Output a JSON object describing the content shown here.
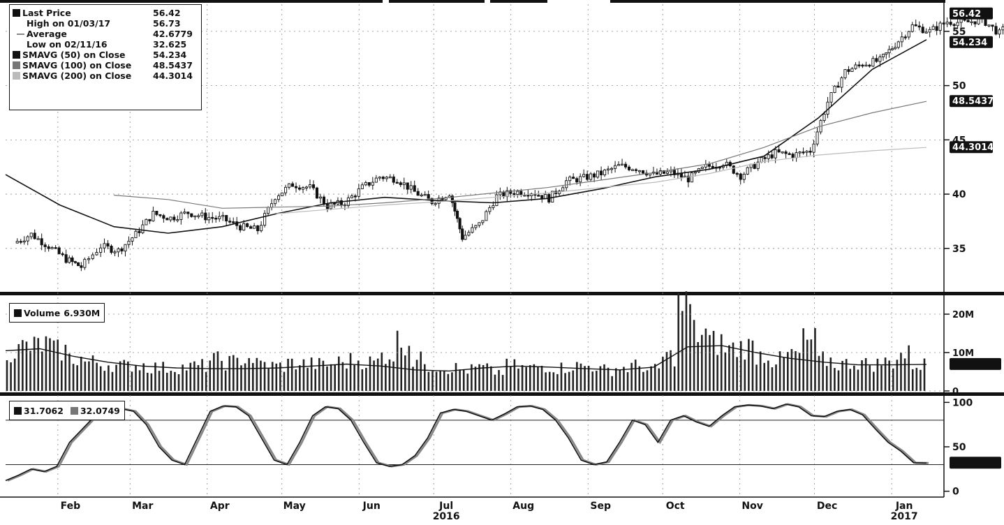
{
  "chart_data": [
    {
      "type": "candlestick",
      "panel": "price",
      "ylim": [
        31,
        57.5
      ],
      "y_ticks": [
        35,
        40,
        45,
        50,
        55
      ],
      "legend": {
        "placement": "top-left",
        "entries": [
          {
            "label": "Last Price",
            "value": "56.42",
            "swatch": "#111111"
          },
          {
            "label": "High on 01/03/17",
            "value": "56.73",
            "swatch": "none"
          },
          {
            "label": "Average",
            "value": "42.6779",
            "swatch": "dash"
          },
          {
            "label": "Low on 02/11/16",
            "value": "32.625",
            "swatch": "none"
          },
          {
            "label": "SMAVG (50) on Close",
            "value": "54.234",
            "swatch": "#111111"
          },
          {
            "label": "SMAVG (100) on Close",
            "value": "48.5437",
            "swatch": "#777777"
          },
          {
            "label": "SMAVG (200) on Close",
            "value": "44.3014",
            "swatch": "#bbbbbb"
          }
        ]
      },
      "value_tags": [
        {
          "text": "56.42",
          "value": 56.42
        },
        {
          "text": "54.234",
          "value": 54.234
        },
        {
          "text": "48.5437",
          "value": 48.5437
        },
        {
          "text": "44.3014",
          "value": 44.3014
        }
      ],
      "close_path": [
        [
          "2016-01-15",
          35.5
        ],
        [
          "2016-01-22",
          36.3
        ],
        [
          "2016-01-29",
          35.2
        ],
        [
          "2016-02-05",
          34.0
        ],
        [
          "2016-02-11",
          33.3
        ],
        [
          "2016-02-19",
          35.2
        ],
        [
          "2016-02-26",
          34.8
        ],
        [
          "2016-03-04",
          36.3
        ],
        [
          "2016-03-11",
          38.2
        ],
        [
          "2016-03-18",
          37.8
        ],
        [
          "2016-03-25",
          38.3
        ],
        [
          "2016-04-01",
          37.9
        ],
        [
          "2016-04-08",
          37.7
        ],
        [
          "2016-04-15",
          37.0
        ],
        [
          "2016-04-22",
          36.7
        ],
        [
          "2016-04-29",
          39.8
        ],
        [
          "2016-05-06",
          40.9
        ],
        [
          "2016-05-13",
          40.6
        ],
        [
          "2016-05-20",
          38.9
        ],
        [
          "2016-05-27",
          39.2
        ],
        [
          "2016-06-03",
          40.6
        ],
        [
          "2016-06-10",
          41.6
        ],
        [
          "2016-06-17",
          41.4
        ],
        [
          "2016-06-24",
          40.2
        ],
        [
          "2016-07-01",
          39.3
        ],
        [
          "2016-07-08",
          40.1
        ],
        [
          "2016-07-13",
          36.0
        ],
        [
          "2016-07-20",
          37.2
        ],
        [
          "2016-07-27",
          39.8
        ],
        [
          "2016-08-03",
          40.2
        ],
        [
          "2016-08-10",
          40.2
        ],
        [
          "2016-08-17",
          39.6
        ],
        [
          "2016-08-24",
          41.2
        ],
        [
          "2016-08-31",
          41.5
        ],
        [
          "2016-09-07",
          41.9
        ],
        [
          "2016-09-14",
          42.6
        ],
        [
          "2016-09-21",
          42.4
        ],
        [
          "2016-09-28",
          41.8
        ],
        [
          "2016-10-05",
          42.0
        ],
        [
          "2016-10-12",
          41.4
        ],
        [
          "2016-10-19",
          42.5
        ],
        [
          "2016-10-26",
          42.9
        ],
        [
          "2016-11-02",
          41.7
        ],
        [
          "2016-11-09",
          42.9
        ],
        [
          "2016-11-16",
          43.8
        ],
        [
          "2016-11-23",
          43.6
        ],
        [
          "2016-11-30",
          44.0
        ],
        [
          "2016-12-07",
          48.5
        ],
        [
          "2016-12-14",
          51.3
        ],
        [
          "2016-12-21",
          52.0
        ],
        [
          "2016-12-28",
          52.3
        ],
        [
          "2017-01-03",
          53.8
        ],
        [
          "2017-01-10",
          55.5
        ],
        [
          "2017-01-17",
          55.0
        ],
        [
          "2017-01-24",
          55.9
        ],
        [
          "2017-01-31",
          55.8
        ],
        [
          "2017-02-07",
          56.1
        ],
        [
          "2017-02-14",
          54.8
        ],
        [
          "2017-02-21",
          56.42
        ]
      ],
      "series": [
        {
          "name": "SMAVG (50) on Close",
          "values": [
            41.8,
            39.0,
            37.0,
            36.4,
            37.0,
            38.2,
            39.2,
            39.7,
            39.4,
            39.2,
            39.6,
            40.5,
            41.6,
            42.3,
            43.5,
            47.0,
            51.5,
            54.234
          ]
        },
        {
          "name": "SMAVG (100) on Close",
          "values": [
            null,
            null,
            39.9,
            39.5,
            38.7,
            38.8,
            38.9,
            39.2,
            39.6,
            40.1,
            40.6,
            41.3,
            42.0,
            42.8,
            44.3,
            46.2,
            47.5,
            48.5437
          ]
        },
        {
          "name": "SMAVG (200) on Close",
          "values": [
            null,
            null,
            null,
            null,
            null,
            38.2,
            38.6,
            39.0,
            39.3,
            39.7,
            40.1,
            40.6,
            41.1,
            41.9,
            43.0,
            43.6,
            44.0,
            44.3014
          ]
        }
      ]
    },
    {
      "type": "bar",
      "panel": "volume",
      "legend": {
        "label": "Volume",
        "value": "6.930M"
      },
      "ylim": [
        0,
        24
      ],
      "y_ticks": [
        "0",
        "10M",
        "20M"
      ],
      "y_tick_values": [
        0,
        10,
        20
      ],
      "series": [
        {
          "name": "Volume",
          "values_millions": [
            10.5,
            11.5,
            12.0,
            10.5,
            8.5,
            7.5,
            7.0,
            6.5,
            6.8,
            6.2,
            6.0,
            6.2,
            6.5,
            8.0,
            7.5,
            8.5,
            7.0,
            6.5,
            7.2,
            7.0,
            6.8,
            7.5,
            8.0,
            7.5,
            9.5,
            13.0,
            8.0,
            6.5,
            6.0,
            5.5,
            6.0,
            5.0,
            6.5,
            6.0,
            6.5,
            6.0,
            6.5,
            6.5,
            5.5,
            6.0,
            6.5,
            5.5,
            9.0,
            22.0,
            15.0,
            12.5,
            11.0,
            11.5,
            9.5,
            8.0,
            9.5,
            13.0,
            8.0,
            7.0,
            7.5,
            7.0,
            7.5,
            9.5,
            6.93
          ]
        },
        {
          "name": "Volume SMAVG",
          "values_millions": [
            10.5,
            11.0,
            9.0,
            7.5,
            6.5,
            6.0,
            5.8,
            5.8,
            6.0,
            6.5,
            7.0,
            6.5,
            5.5,
            5.2,
            6.0,
            6.5,
            6.2,
            5.8,
            5.5,
            6.2,
            11.5,
            11.8,
            10.0,
            8.5,
            7.5,
            6.8,
            6.8,
            6.93
          ]
        }
      ]
    },
    {
      "type": "line",
      "panel": "oscillator",
      "ylim": [
        -5,
        105
      ],
      "y_ticks": [
        0,
        50,
        100
      ],
      "reference_lines": [
        30,
        80
      ],
      "legend": [
        {
          "label": "31.7062",
          "swatch": "#111111"
        },
        {
          "label": "32.0749",
          "swatch": "#777777"
        }
      ],
      "series": [
        {
          "name": "%K",
          "values": [
            12,
            18,
            25,
            22,
            28,
            55,
            70,
            85,
            92,
            93,
            90,
            75,
            50,
            35,
            30,
            60,
            90,
            96,
            95,
            85,
            60,
            35,
            30,
            55,
            85,
            95,
            93,
            80,
            55,
            32,
            28,
            30,
            40,
            60,
            88,
            92,
            90,
            85,
            80,
            87,
            95,
            96,
            92,
            80,
            60,
            35,
            30,
            33,
            55,
            80,
            75,
            55,
            80,
            85,
            78,
            73,
            85,
            95,
            97,
            96,
            93,
            98,
            95,
            85,
            84,
            90,
            92,
            86,
            70,
            55,
            45,
            32,
            31.7
          ]
        }
      ]
    },
    {
      "type": "axis",
      "x_months": [
        {
          "label": "Feb",
          "date": "2016-02-01"
        },
        {
          "label": "Mar",
          "date": "2016-03-01"
        },
        {
          "label": "Apr",
          "date": "2016-04-01"
        },
        {
          "label": "May",
          "date": "2016-05-01"
        },
        {
          "label": "Jun",
          "date": "2016-06-01"
        },
        {
          "label": "Jul",
          "date": "2016-07-01"
        },
        {
          "label": "Aug",
          "date": "2016-08-01"
        },
        {
          "label": "Sep",
          "date": "2016-09-01"
        },
        {
          "label": "Oct",
          "date": "2016-10-01"
        },
        {
          "label": "Nov",
          "date": "2016-11-01"
        },
        {
          "label": "Dec",
          "date": "2016-12-01"
        },
        {
          "label": "Jan",
          "date": "2017-01-01"
        }
      ],
      "year_labels": [
        {
          "label": "2016",
          "date": "2016-07-01"
        },
        {
          "label": "2017",
          "date": "2017-01-01"
        }
      ],
      "x_range": [
        "2016-01-11",
        "2017-01-22"
      ]
    }
  ]
}
